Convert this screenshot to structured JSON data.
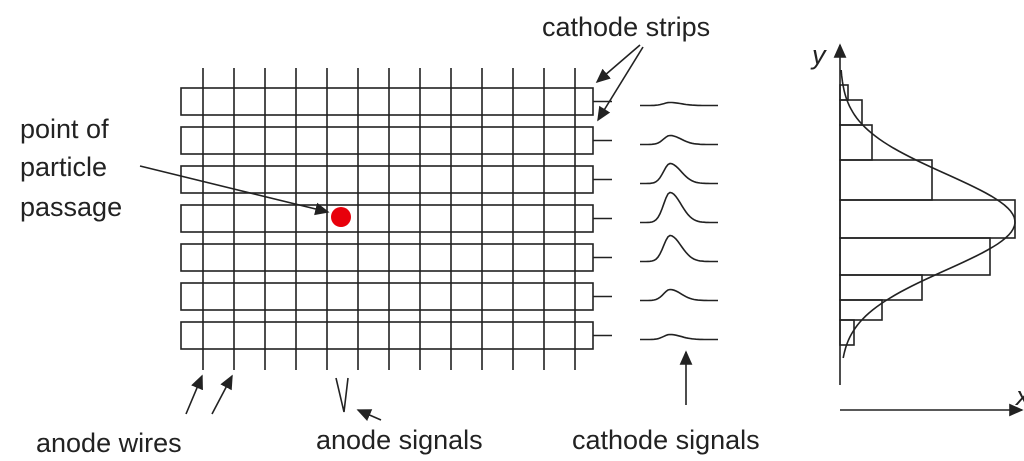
{
  "labels": {
    "cathode_strips": "cathode strips",
    "point_of_particle_passage": [
      "point of",
      "particle",
      "passage"
    ],
    "anode_wires": "anode wires",
    "anode_signals": "anode signals",
    "cathode_signals": "cathode signals",
    "y_axis": "y",
    "x_axis": "x"
  }
}
